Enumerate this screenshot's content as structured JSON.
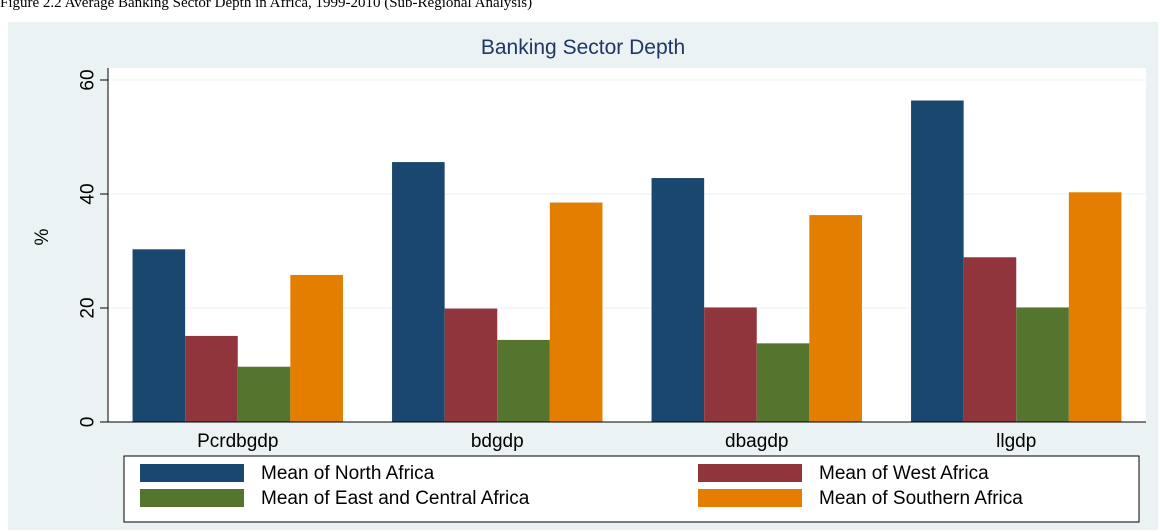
{
  "caption": "Figure 2.2 Average Banking Sector Depth in Africa, 1999-2010 (Sub-Regional Analysis)",
  "chart_data": {
    "type": "bar",
    "title": "Banking Sector Depth",
    "xlabel": "",
    "ylabel": "%",
    "ylim": [
      0,
      60
    ],
    "yticks": [
      0,
      20,
      40,
      60
    ],
    "grid": true,
    "legend_position": "bottom",
    "categories": [
      "Pcrdbgdp",
      "bdgdp",
      "dbagdp",
      "llgdp"
    ],
    "series": [
      {
        "name": "Mean of North Africa",
        "color": "#1a476f",
        "values": [
          30.3,
          45.6,
          42.8,
          56.4
        ]
      },
      {
        "name": "Mean of West Africa",
        "color": "#90353b",
        "values": [
          15.1,
          19.9,
          20.1,
          28.9
        ]
      },
      {
        "name": "Mean of East and Central Africa",
        "color": "#55752f",
        "values": [
          9.7,
          14.4,
          13.8,
          20.1
        ]
      },
      {
        "name": "Mean of Southern Africa",
        "color": "#e37e00",
        "values": [
          25.8,
          38.5,
          36.3,
          40.3
        ]
      }
    ]
  }
}
